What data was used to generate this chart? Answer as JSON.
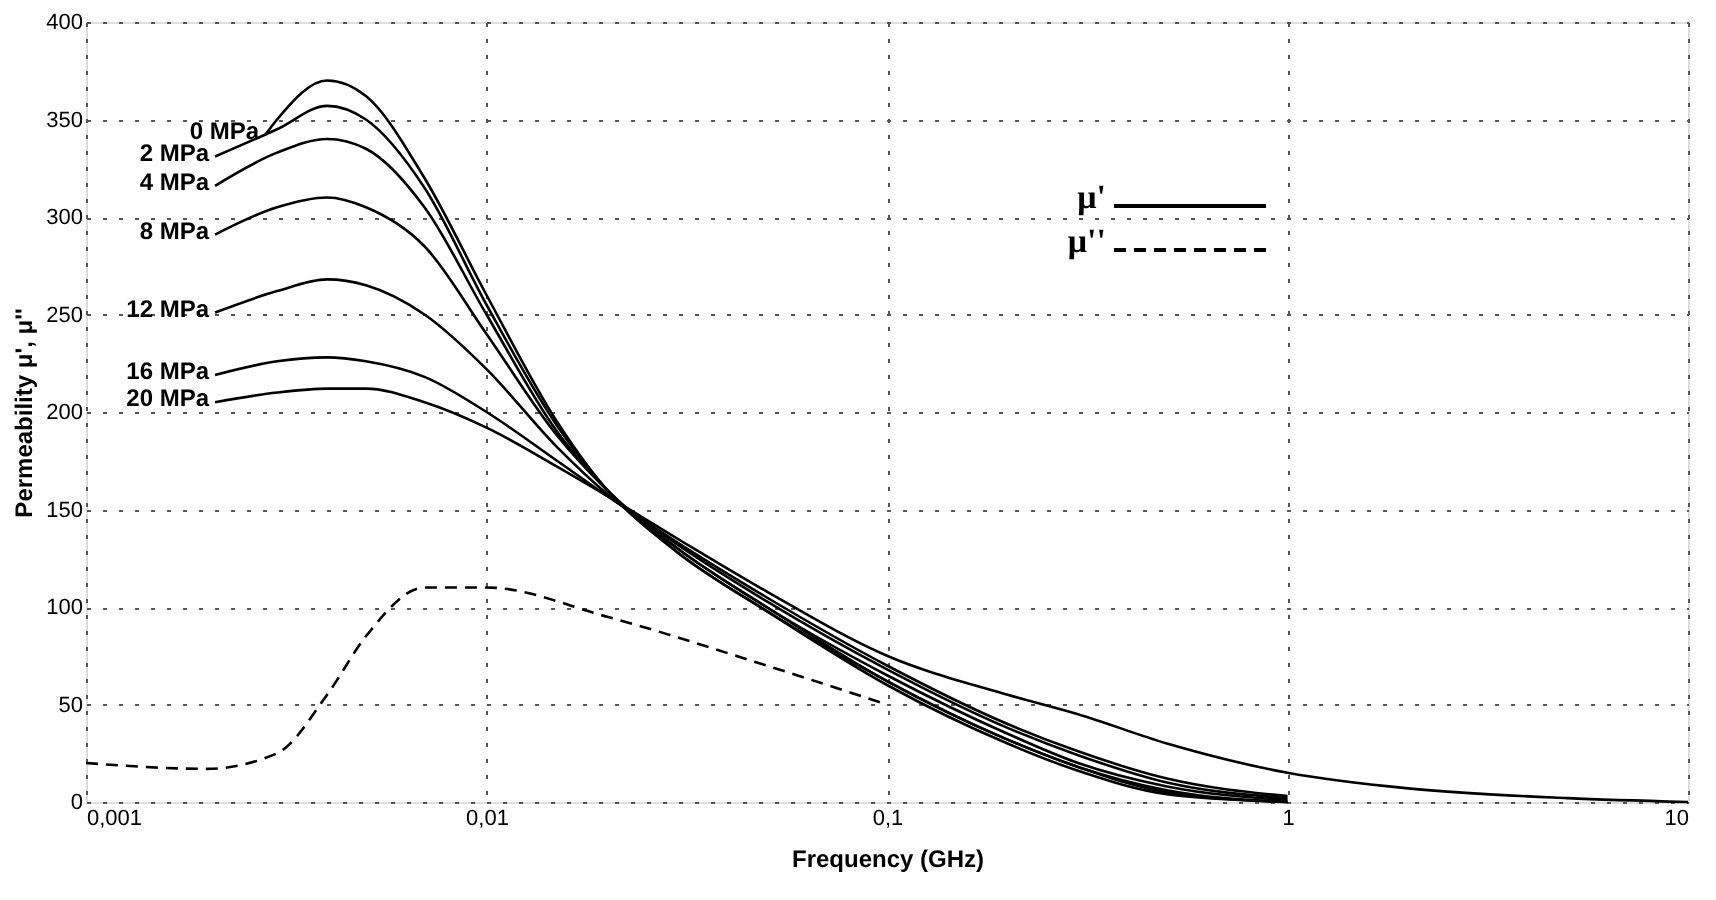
{
  "chart_data": {
    "type": "line",
    "xlabel": "Frequency (GHz)",
    "ylabel": "Permeability μ', μ''",
    "log": "x",
    "xlim": [
      0.001,
      10
    ],
    "ylim": [
      0,
      400
    ],
    "xticks": [
      {
        "value": 0.001,
        "label": "0,001"
      },
      {
        "value": 0.01,
        "label": "0,01"
      },
      {
        "value": 0.1,
        "label": "0,1"
      },
      1,
      10
    ],
    "yticks": [
      0,
      50,
      100,
      150,
      200,
      250,
      300,
      350,
      400
    ],
    "grid": true,
    "annotations": [
      "μ'",
      "μ''"
    ],
    "series": [
      {
        "name": "0 MPa",
        "color": "#000000",
        "line_style": "solid",
        "x": [
          0.0028,
          0.003,
          0.004,
          0.005,
          0.007,
          0.01,
          0.015,
          0.02,
          0.03,
          0.05,
          0.1,
          0.2,
          0.3,
          0.5,
          1
        ],
        "values": [
          342,
          350,
          370,
          362,
          320,
          260,
          195,
          160,
          130,
          100,
          62,
          32,
          18,
          5,
          0
        ]
      },
      {
        "name": "2 MPa",
        "color": "#000000",
        "line_style": "solid",
        "x": [
          0.0021,
          0.003,
          0.004,
          0.005,
          0.007,
          0.01,
          0.015,
          0.02,
          0.03,
          0.05,
          0.1,
          0.2,
          0.3,
          0.5,
          1
        ],
        "values": [
          331,
          345,
          357,
          350,
          315,
          255,
          193,
          160,
          128,
          98,
          60,
          30,
          16,
          4,
          0
        ]
      },
      {
        "name": "4 MPa",
        "color": "#000000",
        "line_style": "solid",
        "x": [
          0.0021,
          0.003,
          0.004,
          0.005,
          0.007,
          0.01,
          0.015,
          0.02,
          0.03,
          0.05,
          0.1,
          0.2,
          0.3,
          0.5,
          1
        ],
        "values": [
          316,
          333,
          340,
          335,
          305,
          250,
          190,
          160,
          128,
          98,
          62,
          32,
          18,
          6,
          0
        ]
      },
      {
        "name": "8 MPa",
        "color": "#000000",
        "line_style": "solid",
        "x": [
          0.0021,
          0.003,
          0.004,
          0.005,
          0.007,
          0.01,
          0.015,
          0.02,
          0.03,
          0.05,
          0.1,
          0.2,
          0.3,
          0.5,
          1
        ],
        "values": [
          291,
          305,
          310,
          305,
          285,
          240,
          188,
          160,
          130,
          100,
          65,
          35,
          20,
          8,
          1
        ]
      },
      {
        "name": "12 MPa",
        "color": "#000000",
        "line_style": "solid",
        "x": [
          0.0021,
          0.003,
          0.004,
          0.005,
          0.007,
          0.01,
          0.015,
          0.02,
          0.03,
          0.05,
          0.1,
          0.2,
          0.3,
          0.5,
          1
        ],
        "values": [
          251,
          262,
          268,
          265,
          250,
          222,
          182,
          158,
          132,
          103,
          68,
          38,
          24,
          10,
          2
        ]
      },
      {
        "name": "16 MPa",
        "color": "#000000",
        "line_style": "solid",
        "x": [
          0.0021,
          0.003,
          0.004,
          0.005,
          0.007,
          0.01,
          0.015,
          0.02,
          0.03,
          0.05,
          0.1,
          0.2,
          0.3,
          0.5,
          1
        ],
        "values": [
          219,
          226,
          228,
          226,
          218,
          200,
          175,
          157,
          133,
          105,
          70,
          40,
          26,
          12,
          3
        ]
      },
      {
        "name": "20 MPa",
        "color": "#000000",
        "line_style": "solid",
        "x": [
          0.0021,
          0.003,
          0.004,
          0.005,
          0.007,
          0.01,
          0.015,
          0.02,
          0.03,
          0.05,
          0.1,
          0.2,
          0.3,
          0.5,
          1,
          2,
          5,
          10
        ],
        "values": [
          205,
          210,
          212,
          212,
          205,
          192,
          172,
          157,
          135,
          108,
          75,
          55,
          45,
          30,
          15,
          7,
          2,
          0
        ]
      },
      {
        "color": "#000000",
        "line_style": "dashed",
        "x": [
          0.001,
          0.002,
          0.003,
          0.004,
          0.005,
          0.007,
          0.01,
          0.02,
          0.05,
          0.1
        ],
        "values": [
          20,
          17,
          25,
          55,
          85,
          110,
          110,
          95,
          70,
          50
        ]
      }
    ]
  }
}
